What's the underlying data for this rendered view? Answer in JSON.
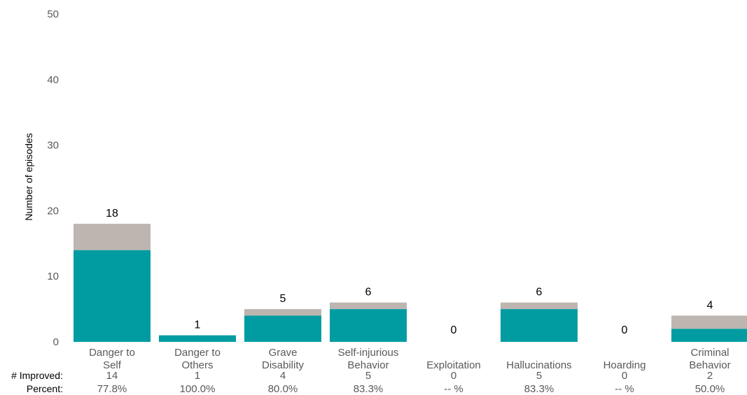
{
  "chart_data": {
    "type": "bar",
    "stacked": true,
    "ylabel": "Number of episodes",
    "ylim": [
      0,
      50
    ],
    "yticks": [
      0,
      10,
      20,
      30,
      40,
      50
    ],
    "grid": false,
    "categories": [
      [
        "Danger to",
        "Self"
      ],
      [
        "Danger to",
        "Others"
      ],
      [
        "Grave",
        "Disability"
      ],
      [
        "Self-injurious",
        "Behavior"
      ],
      [
        "Exploitation"
      ],
      [
        "Hallucinations"
      ],
      [
        "Hoarding"
      ],
      [
        "Criminal",
        "Behavior"
      ]
    ],
    "totals": [
      18,
      1,
      5,
      6,
      0,
      6,
      0,
      4
    ],
    "series": [
      {
        "values": [
          14,
          1,
          4,
          5,
          0,
          5,
          0,
          2
        ],
        "color": "#009ca2"
      },
      {
        "values": [
          4,
          0,
          1,
          1,
          0,
          1,
          0,
          2
        ],
        "color": "#bdb5b0"
      }
    ],
    "row_labels": {
      "improved": "# Improved:",
      "percent": "Percent:"
    },
    "improved": [
      "14",
      "1",
      "4",
      "5",
      "0",
      "5",
      "0",
      "2"
    ],
    "percent": [
      "77.8%",
      "100.0%",
      "80.0%",
      "83.3%",
      "-- %",
      "83.3%",
      "-- %",
      "50.0%"
    ]
  }
}
